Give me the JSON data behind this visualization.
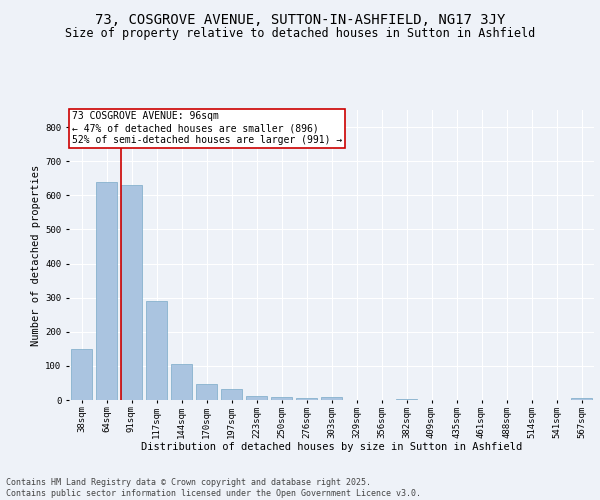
{
  "title": "73, COSGROVE AVENUE, SUTTON-IN-ASHFIELD, NG17 3JY",
  "subtitle": "Size of property relative to detached houses in Sutton in Ashfield",
  "xlabel": "Distribution of detached houses by size in Sutton in Ashfield",
  "ylabel": "Number of detached properties",
  "categories": [
    "38sqm",
    "64sqm",
    "91sqm",
    "117sqm",
    "144sqm",
    "170sqm",
    "197sqm",
    "223sqm",
    "250sqm",
    "276sqm",
    "303sqm",
    "329sqm",
    "356sqm",
    "382sqm",
    "409sqm",
    "435sqm",
    "461sqm",
    "488sqm",
    "514sqm",
    "541sqm",
    "567sqm"
  ],
  "values": [
    150,
    640,
    630,
    290,
    105,
    47,
    32,
    12,
    8,
    6,
    8,
    0,
    0,
    4,
    0,
    0,
    0,
    0,
    0,
    0,
    6
  ],
  "bar_color": "#aac4e0",
  "bar_edgecolor": "#7aaac8",
  "vline_x_index": 2,
  "vline_color": "#cc0000",
  "annotation_text": "73 COSGROVE AVENUE: 96sqm\n← 47% of detached houses are smaller (896)\n52% of semi-detached houses are larger (991) →",
  "annotation_box_color": "#ffffff",
  "annotation_box_edgecolor": "#cc0000",
  "footer": "Contains HM Land Registry data © Crown copyright and database right 2025.\nContains public sector information licensed under the Open Government Licence v3.0.",
  "ylim": [
    0,
    850
  ],
  "background_color": "#eef2f8",
  "axes_background": "#eef2f8",
  "grid_color": "#ffffff",
  "title_fontsize": 10,
  "subtitle_fontsize": 8.5,
  "axis_label_fontsize": 7.5,
  "tick_fontsize": 6.5,
  "annotation_fontsize": 7,
  "footer_fontsize": 6
}
